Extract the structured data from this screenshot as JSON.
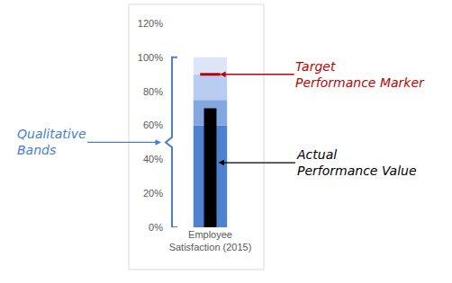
{
  "chart_data": {
    "type": "bullet",
    "categories": [
      "Employee\nSatisfaction (2015)"
    ],
    "stacked": true,
    "series": [
      {
        "type": "band",
        "color": "#4f81d1",
        "values": [
          60
        ]
      },
      {
        "type": "band",
        "color": "#83a7e0",
        "values": [
          15
        ]
      },
      {
        "type": "band",
        "color": "#b8cdef",
        "values": [
          15
        ]
      },
      {
        "type": "band",
        "color": "#dde6f6",
        "values": [
          10
        ]
      },
      {
        "type": "bar",
        "color": "#000000",
        "values": [
          70
        ]
      },
      {
        "type": "target",
        "marker": "line",
        "color": "#c00000",
        "values": [
          90
        ]
      }
    ],
    "ylim": [
      0,
      120
    ],
    "yticks": [
      {
        "value": 0,
        "label": "0%"
      },
      {
        "value": 20,
        "label": "20%"
      },
      {
        "value": 40,
        "label": "40%"
      },
      {
        "value": 60,
        "label": "60%"
      },
      {
        "value": 80,
        "label": "80%"
      },
      {
        "value": 100,
        "label": "100%"
      },
      {
        "value": 120,
        "label": "120%"
      }
    ],
    "grid": false,
    "annotations": [
      {
        "text": "Target\nPerformance Marker",
        "color": "#c00000"
      },
      {
        "text": "Qualitative\nBands",
        "color": "#4a7fc8"
      },
      {
        "text": "Actual\nPerformance Value",
        "color": "#000000"
      }
    ]
  }
}
